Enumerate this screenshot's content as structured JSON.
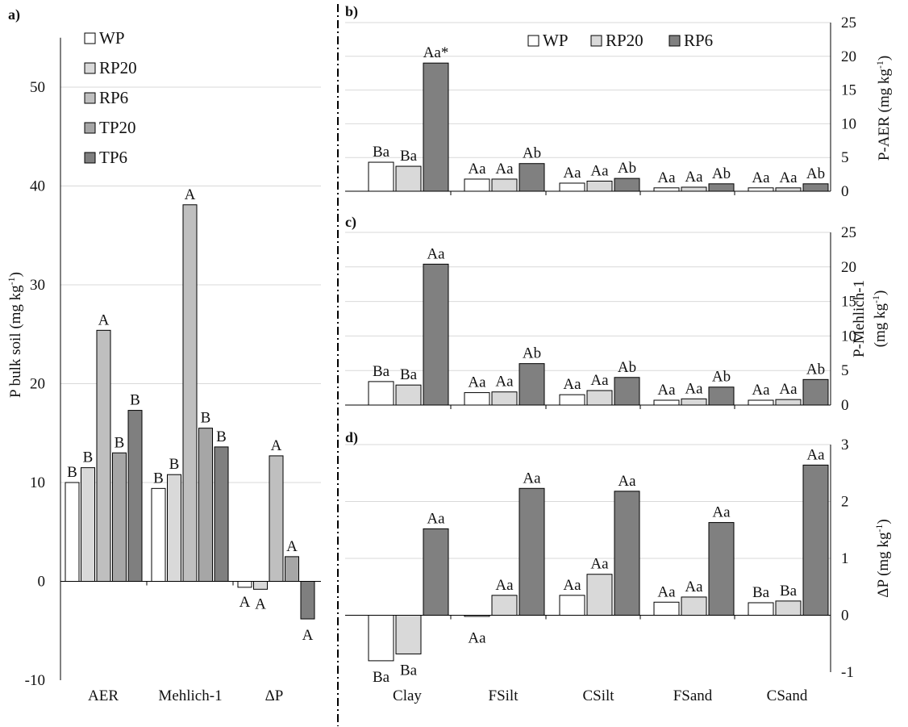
{
  "colors": {
    "WP": "#ffffff",
    "RP20": "#d9d9d9",
    "RP6_a": "#bfbfbf",
    "TP20": "#a6a6a6",
    "TP6": "#7f7f7f",
    "RP6_bcd": "#808080",
    "grid": "#d9d9d9",
    "axis": "#000000"
  },
  "chart_data": [
    {
      "panel": "a)",
      "type": "bar",
      "ylabel": "P bulk soil (mg kg-1)",
      "ylabel_main": "P bulk soil (mg kg",
      "ylabel_sup": "-1",
      "ylabel_close": ")",
      "ylim": [
        -10,
        55
      ],
      "yticks": [
        -10,
        0,
        10,
        20,
        30,
        40,
        50
      ],
      "ytick_labels": [
        "-10",
        "0",
        "10",
        "20",
        "30",
        "40",
        "50"
      ],
      "grid": true,
      "legend": "top-left",
      "categories": [
        "AER",
        "Mehlich-1",
        "ΔP"
      ],
      "series": [
        {
          "name": "WP",
          "values": [
            10.0,
            9.4,
            -0.6
          ],
          "labels": [
            "B",
            "B",
            "A"
          ]
        },
        {
          "name": "RP20",
          "values": [
            11.5,
            10.8,
            -0.8
          ],
          "labels": [
            "B",
            "B",
            "A"
          ]
        },
        {
          "name": "RP6",
          "values": [
            25.4,
            38.1,
            12.7
          ],
          "labels": [
            "A",
            "A",
            "A"
          ]
        },
        {
          "name": "TP20",
          "values": [
            13.0,
            15.5,
            2.5
          ],
          "labels": [
            "B",
            "B",
            "A"
          ]
        },
        {
          "name": "TP6",
          "values": [
            17.3,
            13.6,
            -3.8
          ],
          "labels": [
            "B",
            "B",
            "A"
          ]
        }
      ]
    },
    {
      "panel": "b)",
      "type": "bar",
      "ylabel": "P-AER (mg kg-1)",
      "ylabel_main": "P-AER (mg kg",
      "ylabel_sup": "-1",
      "ylabel_close": ")",
      "ylim": [
        0,
        25
      ],
      "yticks": [
        0,
        5,
        10,
        15,
        20,
        25
      ],
      "ytick_labels": [
        "0",
        "5",
        "10",
        "15",
        "20",
        "25"
      ],
      "grid": true,
      "legend": "top-center",
      "categories": [
        "Clay",
        "FSilt",
        "CSilt",
        "FSand",
        "CSand"
      ],
      "series": [
        {
          "name": "WP",
          "values": [
            4.3,
            1.8,
            1.2,
            0.5,
            0.5
          ],
          "labels": [
            "Ba",
            "Aa",
            "Aa",
            "Aa",
            "Aa"
          ]
        },
        {
          "name": "RP20",
          "values": [
            3.7,
            1.8,
            1.5,
            0.6,
            0.5
          ],
          "labels": [
            "Ba",
            "Aa",
            "Aa",
            "Aa",
            "Aa"
          ]
        },
        {
          "name": "RP6",
          "values": [
            19.0,
            4.1,
            1.9,
            1.1,
            1.1
          ],
          "labels": [
            "Aa*",
            "Ab",
            "Ab",
            "Ab",
            "Ab"
          ]
        }
      ]
    },
    {
      "panel": "c)",
      "type": "bar",
      "ylabel": "P-Mehlich-1 (mg kg-1)",
      "ylabel_line1": "P-Mehlich-1",
      "ylabel_main": "(mg kg",
      "ylabel_sup": "-1",
      "ylabel_close": ")",
      "ylim": [
        0,
        25
      ],
      "yticks": [
        0,
        5,
        10,
        15,
        20,
        25
      ],
      "ytick_labels": [
        "0",
        "5",
        "10",
        "15",
        "20",
        "25"
      ],
      "grid": true,
      "categories": [
        "Clay",
        "FSilt",
        "CSilt",
        "FSand",
        "CSand"
      ],
      "series": [
        {
          "name": "WP",
          "values": [
            3.4,
            1.8,
            1.5,
            0.7,
            0.7
          ],
          "labels": [
            "Ba",
            "Aa",
            "Aa",
            "Aa",
            "Aa"
          ]
        },
        {
          "name": "RP20",
          "values": [
            2.9,
            1.9,
            2.1,
            0.9,
            0.8
          ],
          "labels": [
            "Ba",
            "Aa",
            "Aa",
            "Aa",
            "Aa"
          ]
        },
        {
          "name": "RP6",
          "values": [
            20.4,
            6.0,
            4.0,
            2.6,
            3.7
          ],
          "labels": [
            "Aa",
            "Ab",
            "Ab",
            "Ab",
            "Ab"
          ]
        }
      ]
    },
    {
      "panel": "d)",
      "type": "bar",
      "ylabel": "ΔP (mg kg-1)",
      "ylabel_main": "ΔP (mg kg",
      "ylabel_sup": "-1",
      "ylabel_close": ")",
      "ylim": [
        -1,
        3
      ],
      "yticks": [
        -1,
        0,
        1,
        2,
        3
      ],
      "ytick_labels": [
        "-1",
        "0",
        "1",
        "2",
        "3"
      ],
      "grid": true,
      "categories": [
        "Clay",
        "FSilt",
        "CSilt",
        "FSand",
        "CSand"
      ],
      "series": [
        {
          "name": "WP",
          "values": [
            -0.8,
            -0.02,
            0.35,
            0.23,
            0.22
          ],
          "labels": [
            "Ba",
            "Aa",
            "Aa",
            "Aa",
            "Ba"
          ]
        },
        {
          "name": "RP20",
          "values": [
            -0.68,
            0.35,
            0.72,
            0.32,
            0.25
          ],
          "labels": [
            "Ba",
            "Aa",
            "Aa",
            "Aa",
            "Ba"
          ]
        },
        {
          "name": "RP6",
          "values": [
            1.52,
            2.23,
            2.18,
            1.63,
            2.64
          ],
          "labels": [
            "Aa",
            "Aa",
            "Aa",
            "Aa",
            "Aa"
          ]
        }
      ]
    }
  ]
}
